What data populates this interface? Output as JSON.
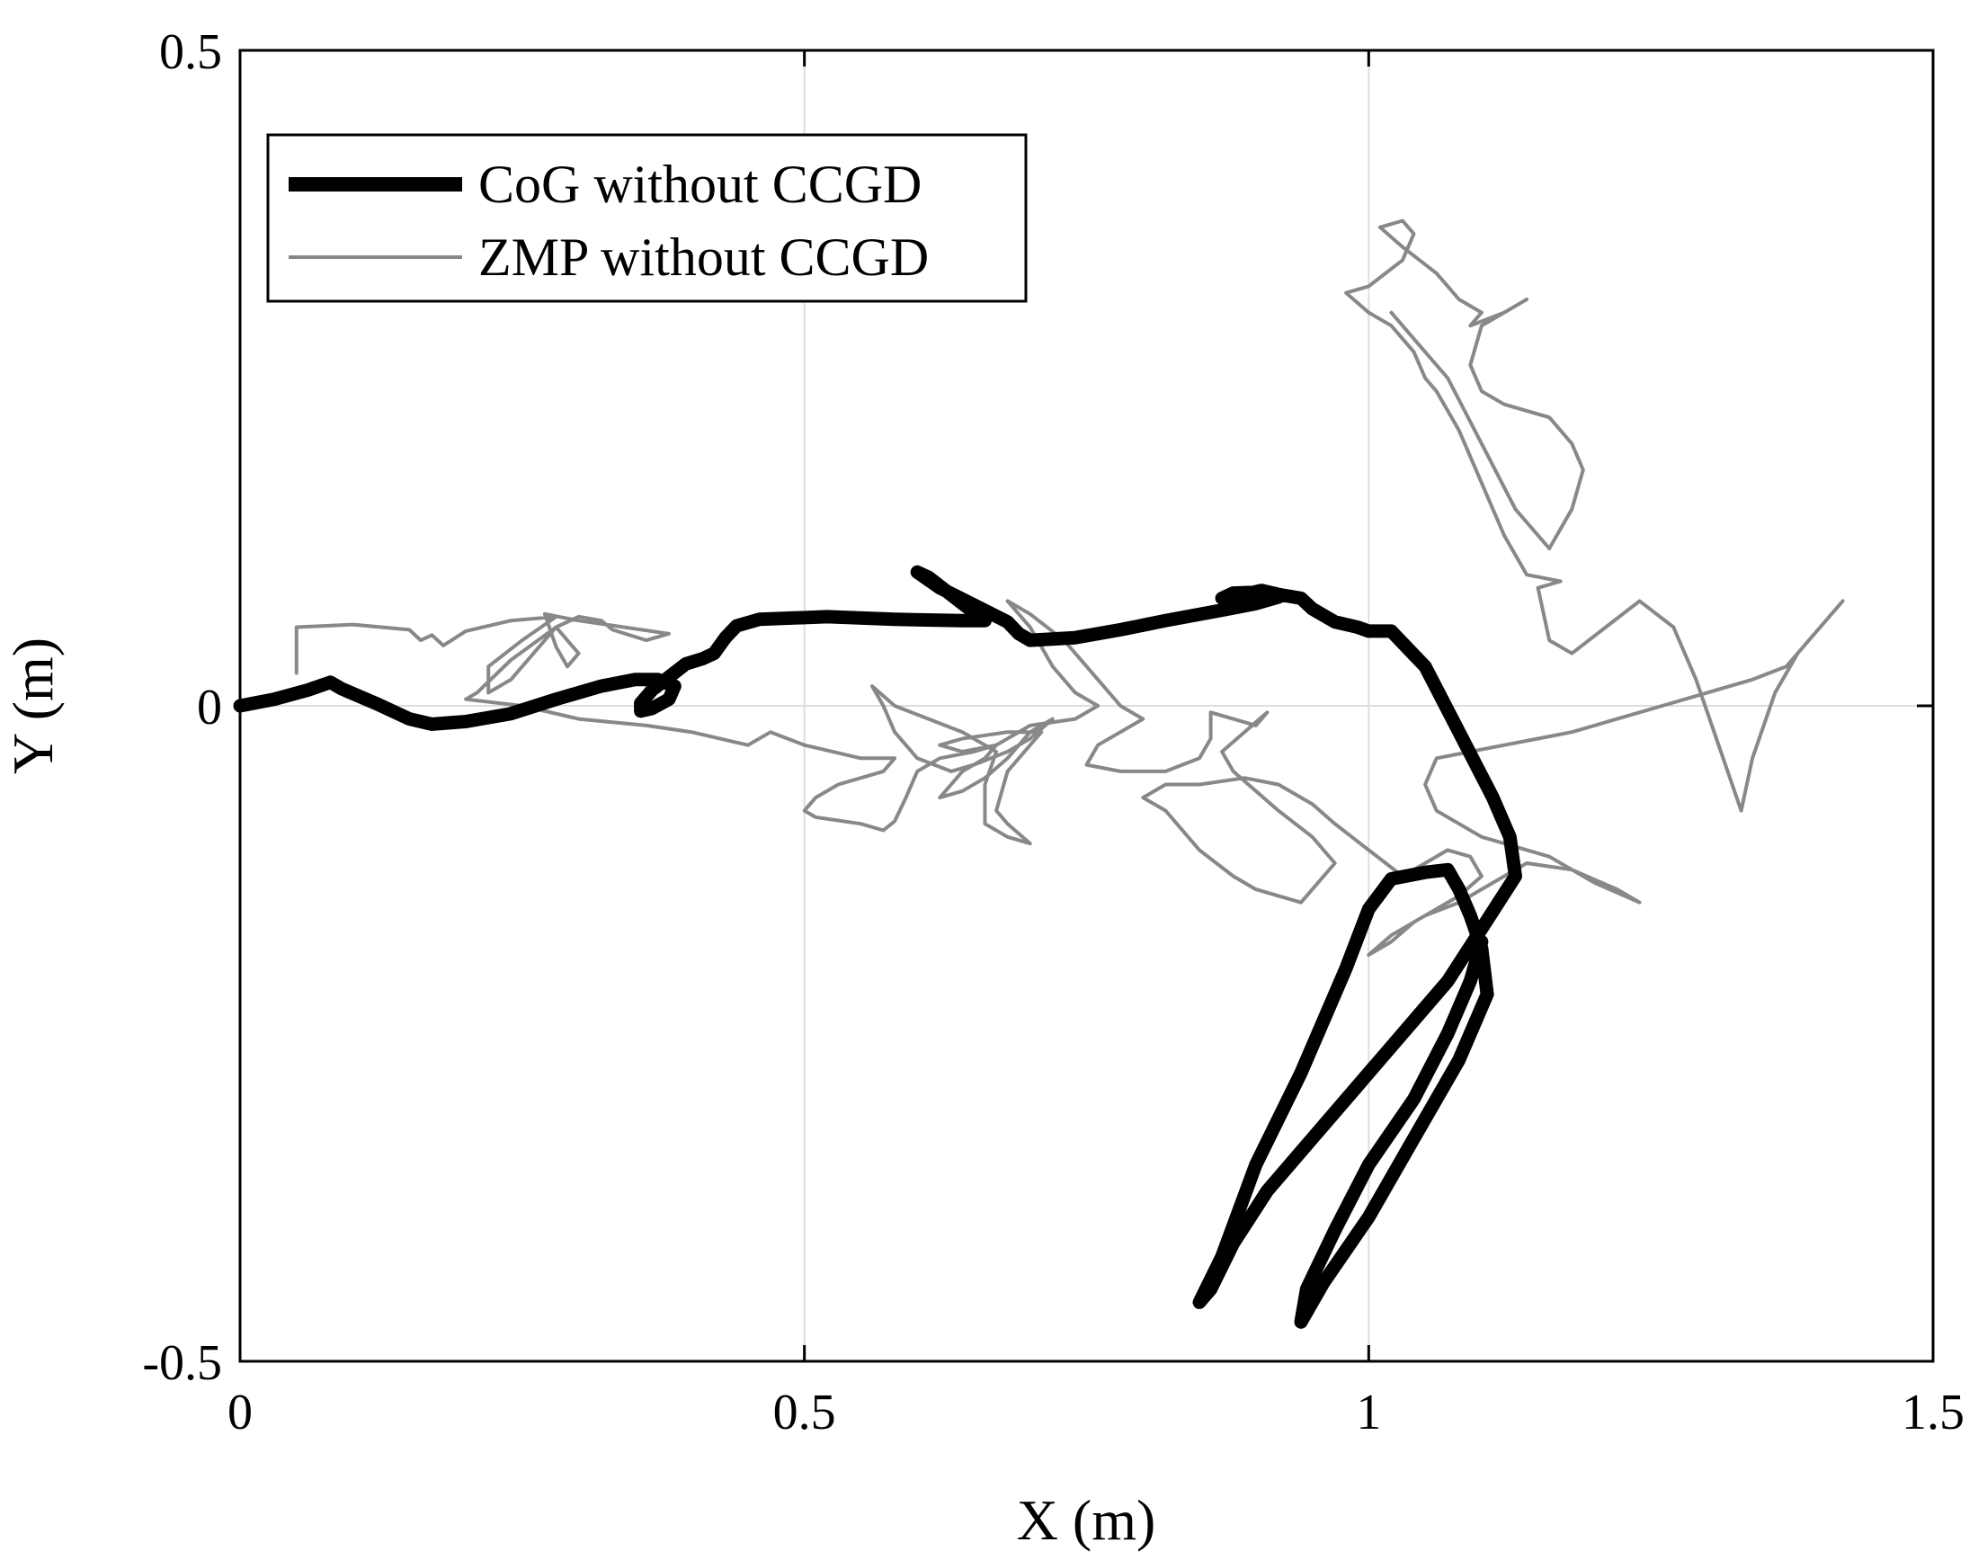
{
  "chart_data": {
    "type": "line",
    "title": "",
    "xlabel": "X (m)",
    "ylabel": "Y (m)",
    "xlim": [
      0,
      1.5
    ],
    "ylim": [
      -0.5,
      0.5
    ],
    "xticks": [
      "0",
      "0.5",
      "1",
      "1.5"
    ],
    "yticks": [
      "-0.5",
      "0",
      "0.5"
    ],
    "xtick_values": [
      0,
      0.5,
      1,
      1.5
    ],
    "ytick_values": [
      -0.5,
      0,
      0.5
    ],
    "grid": true,
    "legend_position": "top-left",
    "series": [
      {
        "name": "CoG without CCGD",
        "color": "#000000",
        "style": "thick",
        "points": [
          [
            0.0,
            0.0
          ],
          [
            0.03,
            0.005
          ],
          [
            0.06,
            0.012
          ],
          [
            0.08,
            0.018
          ],
          [
            0.09,
            0.013
          ],
          [
            0.12,
            0.002
          ],
          [
            0.15,
            -0.01
          ],
          [
            0.17,
            -0.014
          ],
          [
            0.2,
            -0.012
          ],
          [
            0.24,
            -0.006
          ],
          [
            0.28,
            0.005
          ],
          [
            0.32,
            0.015
          ],
          [
            0.35,
            0.02
          ],
          [
            0.37,
            0.02
          ],
          [
            0.385,
            0.015
          ],
          [
            0.38,
            0.005
          ],
          [
            0.365,
            -0.002
          ],
          [
            0.355,
            -0.004
          ],
          [
            0.355,
            0.002
          ],
          [
            0.365,
            0.012
          ],
          [
            0.38,
            0.022
          ],
          [
            0.395,
            0.032
          ],
          [
            0.41,
            0.036
          ],
          [
            0.42,
            0.04
          ],
          [
            0.43,
            0.052
          ],
          [
            0.44,
            0.061
          ],
          [
            0.46,
            0.066
          ],
          [
            0.52,
            0.068
          ],
          [
            0.58,
            0.066
          ],
          [
            0.64,
            0.065
          ],
          [
            0.66,
            0.065
          ],
          [
            0.64,
            0.078
          ],
          [
            0.61,
            0.098
          ],
          [
            0.6,
            0.102
          ],
          [
            0.62,
            0.09
          ],
          [
            0.65,
            0.077
          ],
          [
            0.68,
            0.064
          ],
          [
            0.69,
            0.055
          ],
          [
            0.7,
            0.05
          ],
          [
            0.74,
            0.052
          ],
          [
            0.78,
            0.058
          ],
          [
            0.82,
            0.065
          ],
          [
            0.87,
            0.073
          ],
          [
            0.9,
            0.078
          ],
          [
            0.92,
            0.083
          ],
          [
            0.91,
            0.087
          ],
          [
            0.88,
            0.086
          ],
          [
            0.87,
            0.082
          ],
          [
            0.89,
            0.085
          ],
          [
            0.905,
            0.088
          ],
          [
            0.92,
            0.085
          ],
          [
            0.94,
            0.082
          ],
          [
            0.95,
            0.074
          ],
          [
            0.97,
            0.064
          ],
          [
            0.99,
            0.06
          ],
          [
            1.0,
            0.057
          ],
          [
            1.02,
            0.057
          ],
          [
            1.05,
            0.03
          ],
          [
            1.08,
            -0.02
          ],
          [
            1.11,
            -0.07
          ],
          [
            1.125,
            -0.1
          ],
          [
            1.13,
            -0.13
          ],
          [
            1.1,
            -0.17
          ],
          [
            1.07,
            -0.21
          ],
          [
            1.03,
            -0.25
          ],
          [
            0.99,
            -0.29
          ],
          [
            0.95,
            -0.33
          ],
          [
            0.91,
            -0.37
          ],
          [
            0.88,
            -0.41
          ],
          [
            0.86,
            -0.445
          ],
          [
            0.85,
            -0.455
          ],
          [
            0.87,
            -0.42
          ],
          [
            0.9,
            -0.35
          ],
          [
            0.94,
            -0.28
          ],
          [
            0.98,
            -0.2
          ],
          [
            1.0,
            -0.155
          ],
          [
            1.02,
            -0.132
          ],
          [
            1.05,
            -0.127
          ],
          [
            1.07,
            -0.125
          ],
          [
            1.08,
            -0.14
          ],
          [
            1.09,
            -0.16
          ],
          [
            1.1,
            -0.185
          ],
          [
            1.105,
            -0.22
          ],
          [
            1.08,
            -0.27
          ],
          [
            1.04,
            -0.33
          ],
          [
            1.0,
            -0.39
          ],
          [
            0.96,
            -0.44
          ],
          [
            0.94,
            -0.47
          ],
          [
            0.945,
            -0.445
          ],
          [
            0.97,
            -0.4
          ],
          [
            1.0,
            -0.35
          ],
          [
            1.04,
            -0.3
          ],
          [
            1.07,
            -0.25
          ],
          [
            1.09,
            -0.21
          ],
          [
            1.1,
            -0.18
          ]
        ]
      },
      {
        "name": "ZMP without CCGD",
        "color": "#888888",
        "style": "thin",
        "points": [
          [
            0.05,
            0.025
          ],
          [
            0.05,
            0.06
          ],
          [
            0.1,
            0.062
          ],
          [
            0.15,
            0.058
          ],
          [
            0.16,
            0.05
          ],
          [
            0.17,
            0.054
          ],
          [
            0.18,
            0.046
          ],
          [
            0.2,
            0.057
          ],
          [
            0.24,
            0.065
          ],
          [
            0.28,
            0.068
          ],
          [
            0.25,
            0.05
          ],
          [
            0.22,
            0.03
          ],
          [
            0.22,
            0.01
          ],
          [
            0.24,
            0.02
          ],
          [
            0.26,
            0.04
          ],
          [
            0.28,
            0.06
          ],
          [
            0.29,
            0.05
          ],
          [
            0.3,
            0.04
          ],
          [
            0.29,
            0.03
          ],
          [
            0.28,
            0.045
          ],
          [
            0.27,
            0.07
          ],
          [
            0.3,
            0.065
          ],
          [
            0.34,
            0.06
          ],
          [
            0.38,
            0.055
          ],
          [
            0.36,
            0.05
          ],
          [
            0.33,
            0.058
          ],
          [
            0.32,
            0.065
          ],
          [
            0.3,
            0.068
          ],
          [
            0.28,
            0.06
          ],
          [
            0.24,
            0.035
          ],
          [
            0.21,
            0.01
          ],
          [
            0.2,
            0.005
          ],
          [
            0.25,
            0.0
          ],
          [
            0.3,
            -0.01
          ],
          [
            0.36,
            -0.015
          ],
          [
            0.4,
            -0.02
          ],
          [
            0.45,
            -0.03
          ],
          [
            0.47,
            -0.02
          ],
          [
            0.5,
            -0.03
          ],
          [
            0.55,
            -0.04
          ],
          [
            0.58,
            -0.04
          ],
          [
            0.57,
            -0.05
          ],
          [
            0.53,
            -0.06
          ],
          [
            0.51,
            -0.07
          ],
          [
            0.5,
            -0.08
          ],
          [
            0.51,
            -0.085
          ],
          [
            0.55,
            -0.09
          ],
          [
            0.57,
            -0.095
          ],
          [
            0.58,
            -0.088
          ],
          [
            0.59,
            -0.07
          ],
          [
            0.6,
            -0.05
          ],
          [
            0.62,
            -0.04
          ],
          [
            0.65,
            -0.035
          ],
          [
            0.67,
            -0.03
          ],
          [
            0.66,
            -0.04
          ],
          [
            0.64,
            -0.05
          ],
          [
            0.63,
            -0.06
          ],
          [
            0.62,
            -0.07
          ],
          [
            0.64,
            -0.065
          ],
          [
            0.66,
            -0.055
          ],
          [
            0.68,
            -0.04
          ],
          [
            0.7,
            -0.02
          ],
          [
            0.72,
            -0.01
          ],
          [
            0.7,
            -0.025
          ],
          [
            0.68,
            -0.035
          ],
          [
            0.65,
            -0.045
          ],
          [
            0.63,
            -0.05
          ],
          [
            0.6,
            -0.04
          ],
          [
            0.58,
            -0.02
          ],
          [
            0.57,
            0.0
          ],
          [
            0.56,
            0.015
          ],
          [
            0.58,
            0.0
          ],
          [
            0.61,
            -0.01
          ],
          [
            0.64,
            -0.02
          ],
          [
            0.67,
            -0.035
          ],
          [
            0.66,
            -0.06
          ],
          [
            0.66,
            -0.09
          ],
          [
            0.68,
            -0.1
          ],
          [
            0.7,
            -0.105
          ],
          [
            0.68,
            -0.09
          ],
          [
            0.67,
            -0.08
          ],
          [
            0.68,
            -0.05
          ],
          [
            0.7,
            -0.03
          ],
          [
            0.71,
            -0.02
          ],
          [
            0.68,
            -0.02
          ],
          [
            0.64,
            -0.025
          ],
          [
            0.62,
            -0.03
          ],
          [
            0.64,
            -0.035
          ],
          [
            0.67,
            -0.03
          ],
          [
            0.7,
            -0.015
          ],
          [
            0.74,
            -0.01
          ],
          [
            0.76,
            0.0
          ],
          [
            0.74,
            0.01
          ],
          [
            0.72,
            0.03
          ],
          [
            0.7,
            0.06
          ],
          [
            0.68,
            0.08
          ],
          [
            0.7,
            0.07
          ],
          [
            0.73,
            0.05
          ],
          [
            0.76,
            0.02
          ],
          [
            0.78,
            0.0
          ],
          [
            0.8,
            -0.01
          ],
          [
            0.78,
            -0.02
          ],
          [
            0.76,
            -0.03
          ],
          [
            0.75,
            -0.045
          ],
          [
            0.78,
            -0.05
          ],
          [
            0.82,
            -0.05
          ],
          [
            0.85,
            -0.04
          ],
          [
            0.86,
            -0.025
          ],
          [
            0.86,
            -0.005
          ],
          [
            0.88,
            -0.01
          ],
          [
            0.9,
            -0.015
          ],
          [
            0.91,
            -0.005
          ],
          [
            0.89,
            -0.02
          ],
          [
            0.87,
            -0.035
          ],
          [
            0.88,
            -0.05
          ],
          [
            0.92,
            -0.08
          ],
          [
            0.95,
            -0.1
          ],
          [
            0.97,
            -0.12
          ],
          [
            0.94,
            -0.15
          ],
          [
            0.9,
            -0.14
          ],
          [
            0.88,
            -0.13
          ],
          [
            0.85,
            -0.11
          ],
          [
            0.82,
            -0.08
          ],
          [
            0.8,
            -0.07
          ],
          [
            0.82,
            -0.06
          ],
          [
            0.85,
            -0.06
          ],
          [
            0.89,
            -0.055
          ],
          [
            0.92,
            -0.06
          ],
          [
            0.95,
            -0.075
          ],
          [
            0.97,
            -0.09
          ],
          [
            1.0,
            -0.11
          ],
          [
            1.03,
            -0.13
          ],
          [
            1.05,
            -0.12
          ],
          [
            1.07,
            -0.11
          ],
          [
            1.09,
            -0.115
          ],
          [
            1.1,
            -0.13
          ],
          [
            1.08,
            -0.145
          ],
          [
            1.06,
            -0.155
          ],
          [
            1.04,
            -0.165
          ],
          [
            1.02,
            -0.18
          ],
          [
            1.0,
            -0.19
          ],
          [
            1.02,
            -0.175
          ],
          [
            1.05,
            -0.16
          ],
          [
            1.08,
            -0.15
          ],
          [
            1.1,
            -0.14
          ],
          [
            1.12,
            -0.13
          ],
          [
            1.14,
            -0.12
          ],
          [
            1.18,
            -0.125
          ],
          [
            1.22,
            -0.14
          ],
          [
            1.24,
            -0.15
          ],
          [
            1.2,
            -0.135
          ],
          [
            1.16,
            -0.115
          ],
          [
            1.12,
            -0.105
          ],
          [
            1.1,
            -0.1
          ],
          [
            1.08,
            -0.09
          ],
          [
            1.06,
            -0.08
          ],
          [
            1.05,
            -0.06
          ],
          [
            1.06,
            -0.04
          ],
          [
            1.09,
            -0.035
          ],
          [
            1.12,
            -0.03
          ],
          [
            1.15,
            -0.025
          ],
          [
            1.18,
            -0.02
          ],
          [
            1.22,
            -0.01
          ],
          [
            1.26,
            0.0
          ],
          [
            1.3,
            0.01
          ],
          [
            1.34,
            0.02
          ],
          [
            1.37,
            0.03
          ],
          [
            1.4,
            0.06
          ],
          [
            1.42,
            0.08
          ],
          [
            1.39,
            0.05
          ],
          [
            1.38,
            0.04
          ],
          [
            1.36,
            0.01
          ],
          [
            1.34,
            -0.04
          ],
          [
            1.33,
            -0.08
          ],
          [
            1.31,
            -0.03
          ],
          [
            1.29,
            0.02
          ],
          [
            1.27,
            0.06
          ],
          [
            1.24,
            0.08
          ],
          [
            1.21,
            0.06
          ],
          [
            1.18,
            0.04
          ],
          [
            1.16,
            0.05
          ],
          [
            1.15,
            0.09
          ],
          [
            1.17,
            0.095
          ],
          [
            1.14,
            0.1
          ],
          [
            1.12,
            0.13
          ],
          [
            1.1,
            0.17
          ],
          [
            1.08,
            0.21
          ],
          [
            1.06,
            0.24
          ],
          [
            1.05,
            0.25
          ],
          [
            1.04,
            0.27
          ],
          [
            1.02,
            0.29
          ],
          [
            1.0,
            0.3
          ],
          [
            0.98,
            0.315
          ],
          [
            1.0,
            0.32
          ],
          [
            1.03,
            0.34
          ],
          [
            1.04,
            0.36
          ],
          [
            1.03,
            0.37
          ],
          [
            1.01,
            0.365
          ],
          [
            1.03,
            0.35
          ],
          [
            1.06,
            0.33
          ],
          [
            1.08,
            0.31
          ],
          [
            1.1,
            0.3
          ],
          [
            1.09,
            0.29
          ],
          [
            1.12,
            0.3
          ],
          [
            1.14,
            0.31
          ],
          [
            1.12,
            0.3
          ],
          [
            1.1,
            0.29
          ],
          [
            1.09,
            0.26
          ],
          [
            1.1,
            0.24
          ],
          [
            1.12,
            0.23
          ],
          [
            1.16,
            0.22
          ],
          [
            1.18,
            0.2
          ],
          [
            1.19,
            0.18
          ],
          [
            1.18,
            0.15
          ],
          [
            1.16,
            0.12
          ],
          [
            1.13,
            0.15
          ],
          [
            1.1,
            0.2
          ],
          [
            1.07,
            0.25
          ],
          [
            1.04,
            0.28
          ],
          [
            1.02,
            0.3
          ]
        ]
      }
    ]
  }
}
